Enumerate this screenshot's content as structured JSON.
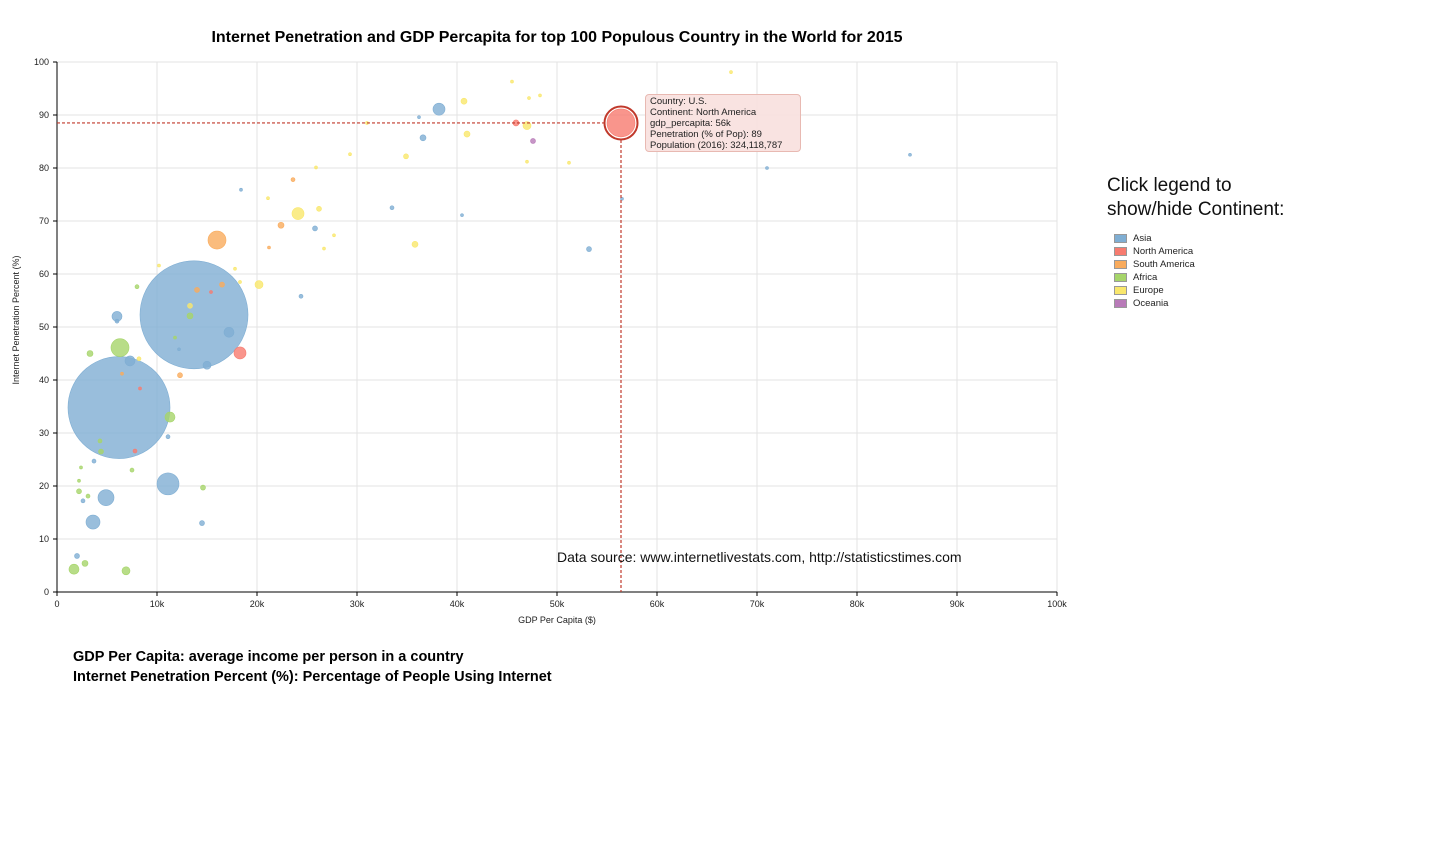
{
  "chart_data": {
    "type": "scatter",
    "title": "Internet Penetration and GDP Percapita for top 100 Populous Country in the World for 2015",
    "xlabel": "GDP Per Capita ($)",
    "ylabel": "Internet Penetration Percent (%)",
    "xlim": [
      0,
      100000
    ],
    "ylim": [
      0,
      100
    ],
    "x_ticks": [
      "0",
      "10k",
      "20k",
      "30k",
      "40k",
      "50k",
      "60k",
      "70k",
      "80k",
      "90k",
      "100k"
    ],
    "y_ticks": [
      "0",
      "10",
      "20",
      "30",
      "40",
      "50",
      "60",
      "70",
      "80",
      "90",
      "100"
    ],
    "grid": true,
    "colors": {
      "Asia": "#7faed3",
      "North America": "#f77b6f",
      "South America": "#f9ab5c",
      "Africa": "#a6d56a",
      "Europe": "#f9e76c",
      "Oceania": "#b87ab8"
    },
    "points": [
      {
        "c": "Asia",
        "x": 13700,
        "y": 52.3,
        "r": 54
      },
      {
        "c": "Asia",
        "x": 6200,
        "y": 34.8,
        "r": 51
      },
      {
        "c": "Asia",
        "x": 11100,
        "y": 20.4,
        "r": 11
      },
      {
        "c": "Asia",
        "x": 4900,
        "y": 17.8,
        "r": 8
      },
      {
        "c": "Asia",
        "x": 3600,
        "y": 13.2,
        "r": 7
      },
      {
        "c": "Asia",
        "x": 7300,
        "y": 43.6,
        "r": 5
      },
      {
        "c": "Asia",
        "x": 6000,
        "y": 52.0,
        "r": 5
      },
      {
        "c": "Asia",
        "x": 17200,
        "y": 49.0,
        "r": 5
      },
      {
        "c": "Asia",
        "x": 15000,
        "y": 42.8,
        "r": 4
      },
      {
        "c": "Asia",
        "x": 38200,
        "y": 91.1,
        "r": 6
      },
      {
        "c": "Asia",
        "x": 36600,
        "y": 85.7,
        "r": 3
      },
      {
        "c": "Asia",
        "x": 53200,
        "y": 64.7,
        "r": 2.5
      },
      {
        "c": "Asia",
        "x": 24400,
        "y": 55.8,
        "r": 2
      },
      {
        "c": "Asia",
        "x": 25800,
        "y": 68.6,
        "r": 2.5
      },
      {
        "c": "Asia",
        "x": 33500,
        "y": 72.5,
        "r": 2
      },
      {
        "c": "Asia",
        "x": 18400,
        "y": 75.9,
        "r": 1.5
      },
      {
        "c": "Asia",
        "x": 14500,
        "y": 13.0,
        "r": 2.5
      },
      {
        "c": "Asia",
        "x": 11100,
        "y": 29.3,
        "r": 2
      },
      {
        "c": "Asia",
        "x": 3700,
        "y": 24.7,
        "r": 2
      },
      {
        "c": "Asia",
        "x": 2000,
        "y": 6.8,
        "r": 2.5
      },
      {
        "c": "Asia",
        "x": 2600,
        "y": 17.2,
        "r": 2
      },
      {
        "c": "Asia",
        "x": 6000,
        "y": 51.1,
        "r": 2
      },
      {
        "c": "Asia",
        "x": 12200,
        "y": 45.8,
        "r": 1.5
      },
      {
        "c": "Asia",
        "x": 40500,
        "y": 71.1,
        "r": 1.5
      },
      {
        "c": "Asia",
        "x": 71000,
        "y": 80.0,
        "r": 1.5
      },
      {
        "c": "Asia",
        "x": 85300,
        "y": 82.5,
        "r": 1.5
      },
      {
        "c": "Asia",
        "x": 56500,
        "y": 74.2,
        "r": 1.5
      },
      {
        "c": "Asia",
        "x": 36200,
        "y": 89.6,
        "r": 1.5
      },
      {
        "c": "North America",
        "x": 56400,
        "y": 88.5,
        "r": 14
      },
      {
        "c": "North America",
        "x": 18300,
        "y": 45.1,
        "r": 6
      },
      {
        "c": "North America",
        "x": 45900,
        "y": 88.5,
        "r": 3
      },
      {
        "c": "North America",
        "x": 7800,
        "y": 26.6,
        "r": 2
      },
      {
        "c": "North America",
        "x": 8300,
        "y": 38.4,
        "r": 1.5
      },
      {
        "c": "North America",
        "x": 15400,
        "y": 56.6,
        "r": 1.5
      },
      {
        "c": "South America",
        "x": 16000,
        "y": 66.4,
        "r": 9
      },
      {
        "c": "South America",
        "x": 22400,
        "y": 69.2,
        "r": 3
      },
      {
        "c": "South America",
        "x": 16500,
        "y": 58.0,
        "r": 2.5
      },
      {
        "c": "South America",
        "x": 14000,
        "y": 57.0,
        "r": 2.5
      },
      {
        "c": "South America",
        "x": 12300,
        "y": 40.9,
        "r": 2.5
      },
      {
        "c": "South America",
        "x": 23600,
        "y": 77.8,
        "r": 2
      },
      {
        "c": "South America",
        "x": 6500,
        "y": 41.2,
        "r": 1.5
      },
      {
        "c": "South America",
        "x": 21200,
        "y": 65.0,
        "r": 1.5
      },
      {
        "c": "Africa",
        "x": 6300,
        "y": 46.1,
        "r": 9
      },
      {
        "c": "Africa",
        "x": 11300,
        "y": 33.0,
        "r": 5
      },
      {
        "c": "Africa",
        "x": 1700,
        "y": 4.3,
        "r": 5
      },
      {
        "c": "Africa",
        "x": 6900,
        "y": 4.0,
        "r": 4
      },
      {
        "c": "Africa",
        "x": 2800,
        "y": 5.4,
        "r": 3
      },
      {
        "c": "Africa",
        "x": 13300,
        "y": 52.1,
        "r": 3
      },
      {
        "c": "Africa",
        "x": 3300,
        "y": 45.0,
        "r": 3
      },
      {
        "c": "Africa",
        "x": 2200,
        "y": 19.0,
        "r": 2.5
      },
      {
        "c": "Africa",
        "x": 4400,
        "y": 26.5,
        "r": 2.5
      },
      {
        "c": "Africa",
        "x": 14600,
        "y": 19.7,
        "r": 2.5
      },
      {
        "c": "Africa",
        "x": 4300,
        "y": 28.5,
        "r": 2
      },
      {
        "c": "Africa",
        "x": 3100,
        "y": 18.1,
        "r": 2
      },
      {
        "c": "Africa",
        "x": 7500,
        "y": 23.0,
        "r": 2
      },
      {
        "c": "Africa",
        "x": 8000,
        "y": 57.6,
        "r": 2
      },
      {
        "c": "Africa",
        "x": 2400,
        "y": 23.5,
        "r": 1.5
      },
      {
        "c": "Africa",
        "x": 2200,
        "y": 21.0,
        "r": 1.5
      },
      {
        "c": "Africa",
        "x": 11800,
        "y": 48.0,
        "r": 1.5
      },
      {
        "c": "Europe",
        "x": 24100,
        "y": 71.4,
        "r": 6
      },
      {
        "c": "Europe",
        "x": 20200,
        "y": 58.0,
        "r": 4
      },
      {
        "c": "Europe",
        "x": 47000,
        "y": 88.0,
        "r": 4
      },
      {
        "c": "Europe",
        "x": 35800,
        "y": 65.6,
        "r": 3
      },
      {
        "c": "Europe",
        "x": 41000,
        "y": 86.4,
        "r": 3
      },
      {
        "c": "Europe",
        "x": 40700,
        "y": 92.6,
        "r": 3
      },
      {
        "c": "Europe",
        "x": 34900,
        "y": 82.2,
        "r": 2.5
      },
      {
        "c": "Europe",
        "x": 26200,
        "y": 72.3,
        "r": 2.5
      },
      {
        "c": "Europe",
        "x": 13300,
        "y": 54.0,
        "r": 2.5
      },
      {
        "c": "Europe",
        "x": 17800,
        "y": 61.0,
        "r": 1.5
      },
      {
        "c": "Europe",
        "x": 18300,
        "y": 58.5,
        "r": 1.5
      },
      {
        "c": "Europe",
        "x": 8200,
        "y": 44.0,
        "r": 2
      },
      {
        "c": "Europe",
        "x": 10200,
        "y": 61.6,
        "r": 1.5
      },
      {
        "c": "Europe",
        "x": 27700,
        "y": 67.3,
        "r": 1.5
      },
      {
        "c": "Europe",
        "x": 26700,
        "y": 64.8,
        "r": 1.5
      },
      {
        "c": "Europe",
        "x": 25900,
        "y": 80.1,
        "r": 1.5
      },
      {
        "c": "Europe",
        "x": 29300,
        "y": 82.6,
        "r": 1.5
      },
      {
        "c": "Europe",
        "x": 45500,
        "y": 96.3,
        "r": 1.5
      },
      {
        "c": "Europe",
        "x": 48300,
        "y": 93.7,
        "r": 1.5
      },
      {
        "c": "Europe",
        "x": 47200,
        "y": 93.2,
        "r": 1.5
      },
      {
        "c": "Europe",
        "x": 47000,
        "y": 81.2,
        "r": 1.5
      },
      {
        "c": "Europe",
        "x": 51200,
        "y": 81.0,
        "r": 1.5
      },
      {
        "c": "Europe",
        "x": 67400,
        "y": 98.1,
        "r": 1.5
      },
      {
        "c": "Europe",
        "x": 21100,
        "y": 74.3,
        "r": 1.5
      },
      {
        "c": "Europe",
        "x": 31000,
        "y": 88.5,
        "r": 1.5
      },
      {
        "c": "Oceania",
        "x": 47600,
        "y": 85.1,
        "r": 2.5
      }
    ],
    "highlight": {
      "x": 56400,
      "y": 88.5,
      "r": 14
    }
  },
  "tooltip": {
    "country": "Country: U.S.",
    "continent": "Continent: North America",
    "gdp": "gdp_percapita: 56k",
    "penetration": "Penetration (% of Pop): 89",
    "population": "Population (2016): 324,118,787"
  },
  "source_text": "Data source: www.internetlivestats.com, http://statisticstimes.com",
  "legend": {
    "title_line1": "Click legend to",
    "title_line2": "show/hide Continent:",
    "items": [
      {
        "label": "Asia",
        "color": "#7faed3"
      },
      {
        "label": "North America",
        "color": "#f77b6f"
      },
      {
        "label": "South America",
        "color": "#f9ab5c"
      },
      {
        "label": "Africa",
        "color": "#a6d56a"
      },
      {
        "label": "Europe",
        "color": "#f9e76c"
      },
      {
        "label": "Oceania",
        "color": "#b87ab8"
      }
    ]
  },
  "notes": {
    "line1": "GDP Per Capita: average income per person in a country",
    "line2": "Internet Penetration Percent (%): Percentage of People Using Internet"
  }
}
